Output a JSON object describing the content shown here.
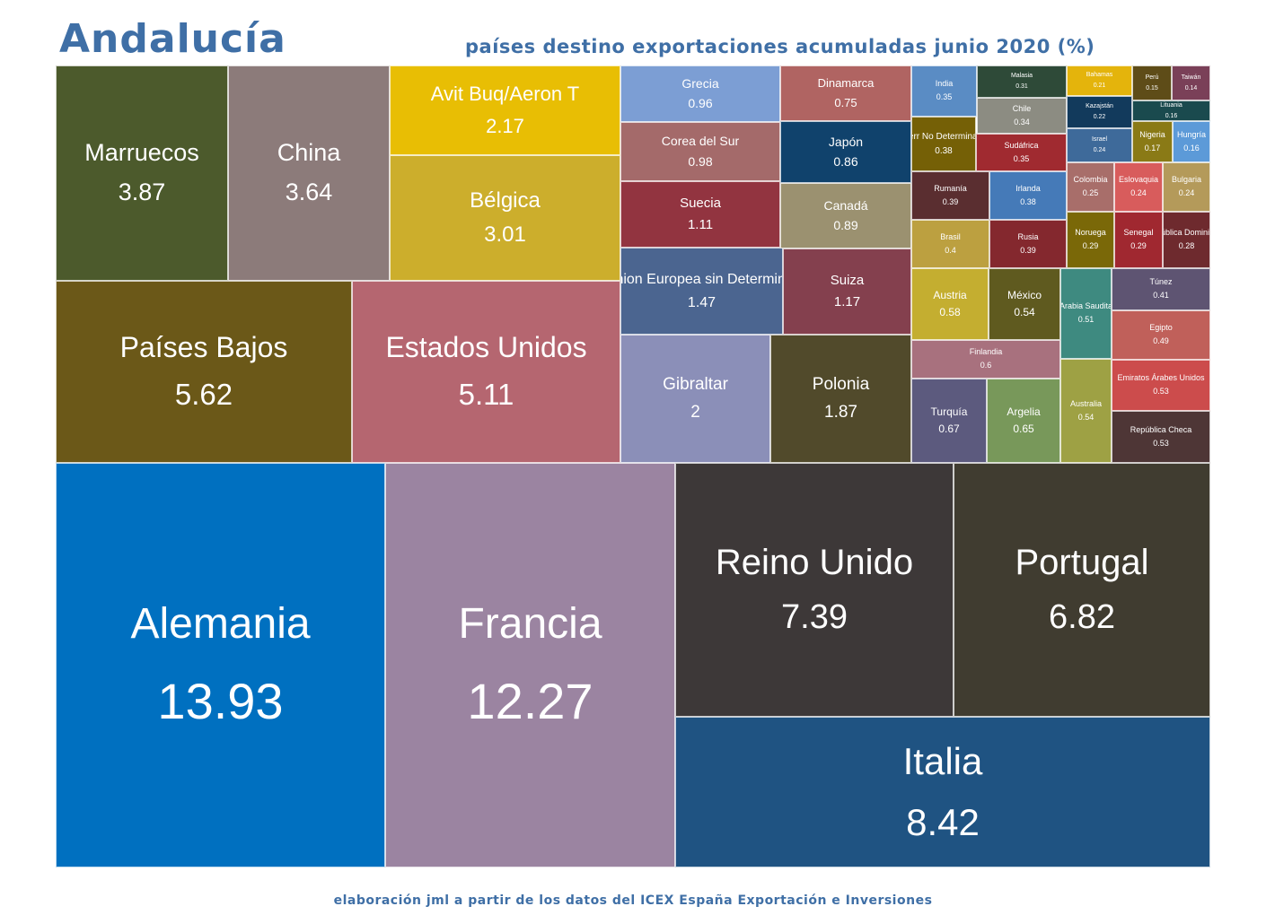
{
  "header": {
    "title": "Andalucía",
    "subtitle": "países destino exportaciones acumuladas junio 2020 (%)"
  },
  "footer": {
    "text": "elaboración jml a partir de los datos del ICEX España Exportación e Inversiones"
  },
  "chart_data": {
    "type": "treemap",
    "title": "países destino exportaciones acumuladas junio 2020 (%)",
    "unit": "%",
    "items": [
      {
        "name": "Alemania",
        "value": 13.93,
        "color": "#0070c0"
      },
      {
        "name": "Francia",
        "value": 12.27,
        "color": "#9b84a1"
      },
      {
        "name": "Italia",
        "value": 8.42,
        "color": "#1f5382"
      },
      {
        "name": "Reino Unido",
        "value": 7.39,
        "color": "#3d3838"
      },
      {
        "name": "Portugal",
        "value": 6.82,
        "color": "#403c30"
      },
      {
        "name": "Países Bajos",
        "value": 5.62,
        "color": "#6b5818"
      },
      {
        "name": "Estados Unidos",
        "value": 5.11,
        "color": "#b56670"
      },
      {
        "name": "Marruecos",
        "value": 3.87,
        "color": "#4c5a2c"
      },
      {
        "name": "China",
        "value": 3.64,
        "color": "#8c7b7a"
      },
      {
        "name": "Bélgica",
        "value": 3.01,
        "color": "#ccae2c"
      },
      {
        "name": "Avit Buq/Aeron T",
        "value": 2.17,
        "color": "#e8be04"
      },
      {
        "name": "Gibraltar",
        "value": 2,
        "color": "#8b8fb8"
      },
      {
        "name": "Polonia",
        "value": 1.87,
        "color": "#514a2b"
      },
      {
        "name": "Union Europea sin Determinar",
        "value": 1.47,
        "color": "#4b6590"
      },
      {
        "name": "Suiza",
        "value": 1.17,
        "color": "#84404e"
      },
      {
        "name": "Suecia",
        "value": 1.11,
        "color": "#923440"
      },
      {
        "name": "Corea del Sur",
        "value": 0.98,
        "color": "#a46a6a"
      },
      {
        "name": "Grecia",
        "value": 0.96,
        "color": "#7c9ed4"
      },
      {
        "name": "Canadá",
        "value": 0.89,
        "color": "#9b9170"
      },
      {
        "name": "Japón",
        "value": 0.86,
        "color": "#10426c"
      },
      {
        "name": "Dinamarca",
        "value": 0.75,
        "color": "#b06462"
      },
      {
        "name": "Turquía",
        "value": 0.67,
        "color": "#5c5a7e"
      },
      {
        "name": "Argelia",
        "value": 0.65,
        "color": "#78985a"
      },
      {
        "name": "Finlandia",
        "value": 0.6,
        "color": "#a8717e"
      },
      {
        "name": "Austria",
        "value": 0.58,
        "color": "#c4ae30"
      },
      {
        "name": "México",
        "value": 0.54,
        "color": "#5f5a1f"
      },
      {
        "name": "Australia",
        "value": 0.54,
        "color": "#9ea144"
      },
      {
        "name": "Emiratos Árabes Unidos",
        "value": 0.53,
        "color": "#cc4c4c"
      },
      {
        "name": "República Checa",
        "value": 0.53,
        "color": "#4e3636"
      },
      {
        "name": "Arabia Saudita",
        "value": 0.51,
        "color": "#3e8a80"
      },
      {
        "name": "Egipto",
        "value": 0.49,
        "color": "#c0605a"
      },
      {
        "name": "Túnez",
        "value": 0.41,
        "color": "#5e5472"
      },
      {
        "name": "Brasil",
        "value": 0.4,
        "color": "#bca040"
      },
      {
        "name": "Rumanía",
        "value": 0.39,
        "color": "#5a2e30"
      },
      {
        "name": "Rusia",
        "value": 0.39,
        "color": "#84282e"
      },
      {
        "name": "Países-Terr No Determinados Terc.",
        "value": 0.38,
        "color": "#756006"
      },
      {
        "name": "Irlanda",
        "value": 0.38,
        "color": "#457ab8"
      },
      {
        "name": "India",
        "value": 0.35,
        "color": "#5a8cc4"
      },
      {
        "name": "Sudáfrica",
        "value": 0.35,
        "color": "#a02a30"
      },
      {
        "name": "Chile",
        "value": 0.34,
        "color": "#8c8c82"
      },
      {
        "name": "Malasia",
        "value": 0.31,
        "color": "#2e4a38"
      },
      {
        "name": "Noruega",
        "value": 0.29,
        "color": "#7a6808"
      },
      {
        "name": "Senegal",
        "value": 0.29,
        "color": "#a02830"
      },
      {
        "name": "República Dominicana",
        "value": 0.28,
        "color": "#6e2a2e"
      },
      {
        "name": "Colombia",
        "value": 0.25,
        "color": "#a86e6a"
      },
      {
        "name": "Israel",
        "value": 0.24,
        "color": "#3e6a9a"
      },
      {
        "name": "Eslovaquia",
        "value": 0.24,
        "color": "#d85c5c"
      },
      {
        "name": "Bulgaria",
        "value": 0.24,
        "color": "#b49a5a"
      },
      {
        "name": "Kazajstán",
        "value": 0.22,
        "color": "#123a5c"
      },
      {
        "name": "Bahamas",
        "value": 0.21,
        "color": "#e4b40c"
      },
      {
        "name": "Nigeria",
        "value": 0.17,
        "color": "#8a7a16"
      },
      {
        "name": "Lituania",
        "value": 0.16,
        "color": "#1a4a4e"
      },
      {
        "name": "Hungría",
        "value": 0.16,
        "color": "#5c9ad8"
      },
      {
        "name": "Perú",
        "value": 0.15,
        "color": "#5e4c18"
      },
      {
        "name": "Taiwán",
        "value": 0.14,
        "color": "#7a4058"
      }
    ]
  }
}
